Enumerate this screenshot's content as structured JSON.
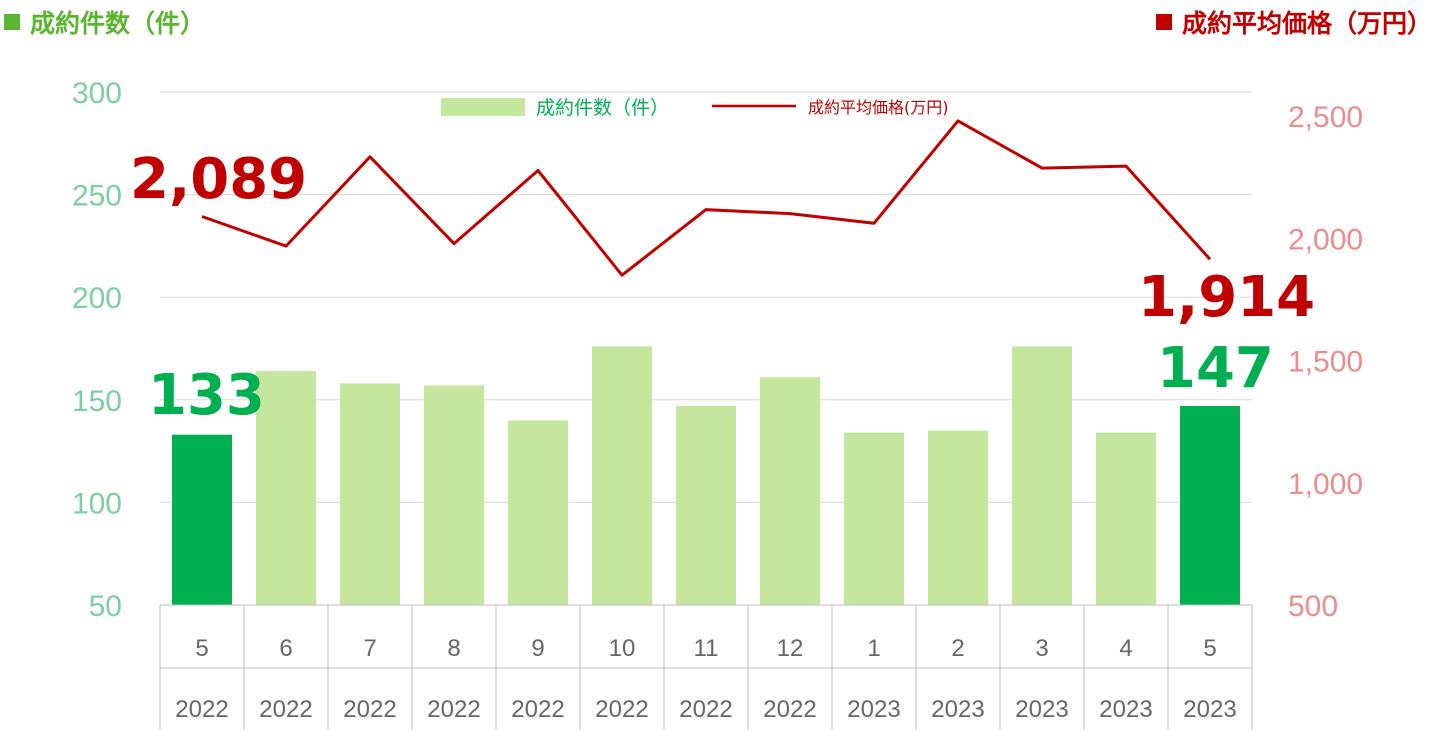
{
  "header": {
    "left_title": "成約件数（件）",
    "right_title": "成約平均価格（万円）"
  },
  "legend": {
    "bar_label": "成約件数（件）",
    "line_label": "成約平均価格(万円)"
  },
  "colors": {
    "bar": "#c5e69e",
    "bar_highlight": "#00b050",
    "line": "#c00000",
    "left_axis_text": "#7ccf9f",
    "right_axis_text": "#ee8c8c"
  },
  "chart_data": {
    "type": "bar",
    "categories": [
      "5",
      "6",
      "7",
      "8",
      "9",
      "10",
      "11",
      "12",
      "1",
      "2",
      "3",
      "4",
      "5"
    ],
    "years": [
      "2022",
      "2022",
      "2022",
      "2022",
      "2022",
      "2022",
      "2022",
      "2022",
      "2023",
      "2023",
      "2023",
      "2023",
      "2023"
    ],
    "series": [
      {
        "name": "成約件数（件）",
        "type": "bar",
        "axis": "left",
        "values": [
          133,
          164,
          158,
          157,
          140,
          176,
          147,
          161,
          134,
          135,
          176,
          134,
          147
        ],
        "highlight_indices": [
          0,
          12
        ]
      },
      {
        "name": "成約平均価格(万円)",
        "type": "line",
        "axis": "right",
        "values": [
          2089,
          1968,
          2333,
          1978,
          2277,
          1849,
          2117,
          2101,
          2061,
          2480,
          2287,
          2295,
          1914
        ]
      }
    ],
    "left_axis": {
      "ylim": [
        50,
        300
      ],
      "ticks": [
        "300",
        "250",
        "200",
        "150",
        "100",
        "50"
      ]
    },
    "right_axis": {
      "ylim": [
        500,
        2600
      ],
      "ticks": [
        "2,500",
        "2,000",
        "1,500",
        "1,000",
        "500"
      ]
    },
    "annotations": {
      "line_first": "2,089",
      "line_last": "1,914",
      "bar_first": "133",
      "bar_last": "147"
    },
    "grid": true,
    "legend_position": "top-center"
  }
}
